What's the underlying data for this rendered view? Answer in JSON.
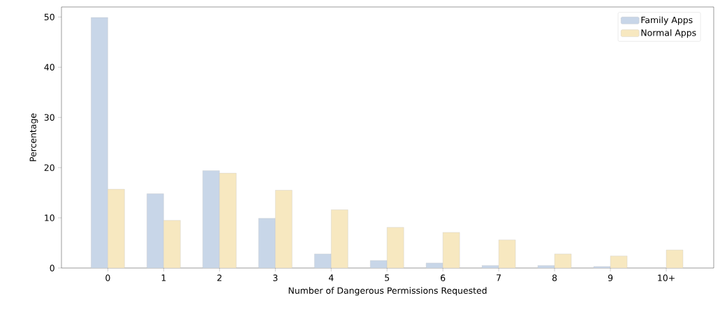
{
  "chart_data": {
    "type": "bar",
    "xlabel": "Number of Dangerous Permissions Requested",
    "ylabel": "Percentage",
    "categories": [
      "0",
      "1",
      "2",
      "3",
      "4",
      "5",
      "6",
      "7",
      "8",
      "9",
      "10+"
    ],
    "series": [
      {
        "name": "Family Apps",
        "color": "#c8d6e8",
        "values": [
          49.9,
          14.8,
          19.4,
          9.9,
          2.8,
          1.5,
          1.0,
          0.5,
          0.5,
          0.3,
          null
        ]
      },
      {
        "name": "Normal Apps",
        "color": "#f7e8c0",
        "values": [
          15.7,
          9.5,
          18.9,
          15.5,
          11.6,
          8.1,
          7.1,
          5.6,
          2.8,
          2.4,
          3.6
        ]
      }
    ],
    "ylim": [
      0,
      52
    ],
    "yticks": [
      0,
      10,
      20,
      30,
      40,
      50
    ],
    "legend": "top right",
    "grid": false
  }
}
